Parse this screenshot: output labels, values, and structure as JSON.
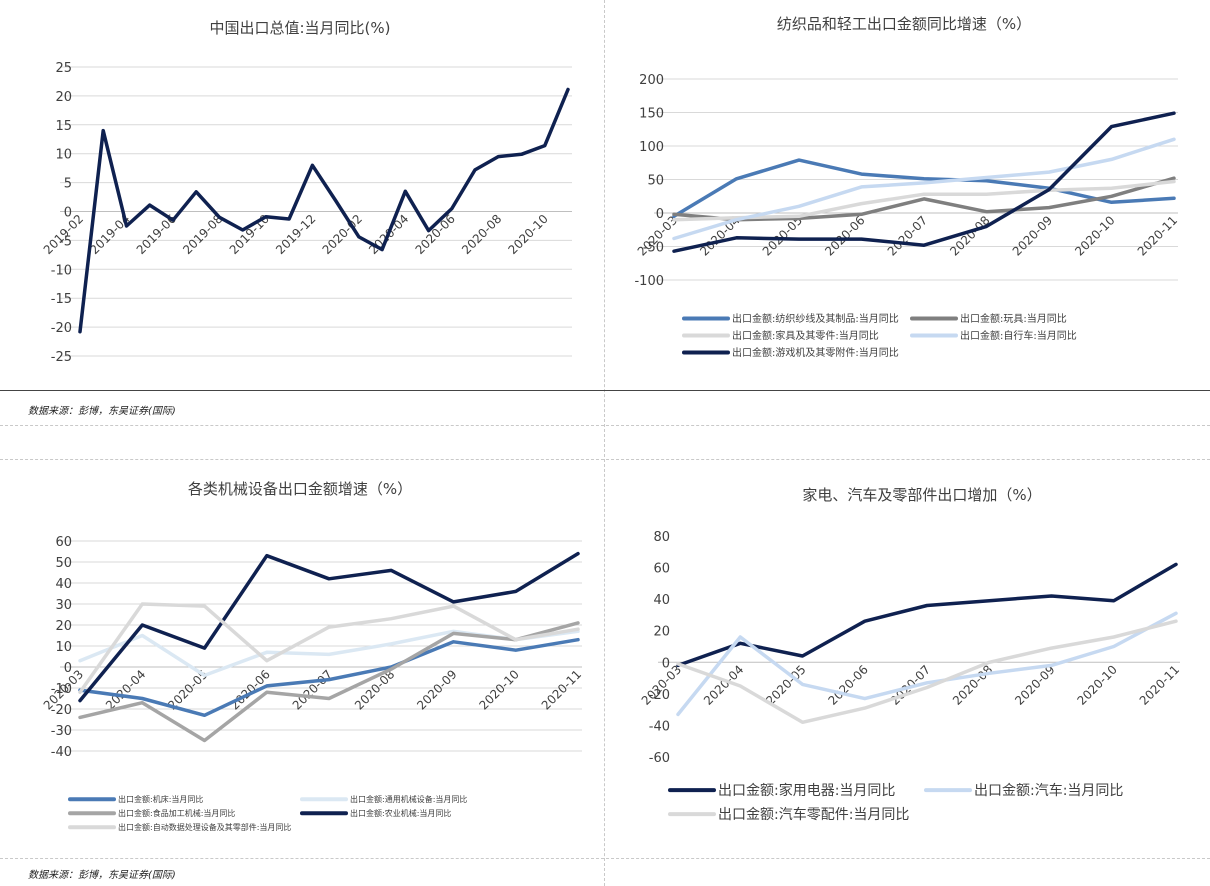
{
  "source_label": "数据来源：彭博，东吴证券(国际)",
  "colors": {
    "navy": "#0f2150",
    "steel": "#4a7ab5",
    "gray": "#7f7f7f",
    "lightgray": "#d9d9d9",
    "lightblue": "#c6d9f1",
    "paleblue": "#dbe8f3",
    "midgray": "#a5a5a5"
  },
  "chart_data": [
    {
      "id": "chart1",
      "type": "line",
      "title": "中国出口总值:当月同比(%)",
      "ylim": [
        -25,
        25
      ],
      "yticks": [
        25,
        20,
        15,
        10,
        5,
        0,
        -5,
        -10,
        -15,
        -20,
        -25
      ],
      "x": [
        "2019-02",
        "2019-03",
        "2019-04",
        "2019-05",
        "2019-06",
        "2019-07",
        "2019-08",
        "2019-09",
        "2019-10",
        "2019-11",
        "2019-12",
        "2020-01",
        "2020-02",
        "2020-03",
        "2020-04",
        "2020-05",
        "2020-06",
        "2020-07",
        "2020-08",
        "2020-09",
        "2020-10",
        "2020-11"
      ],
      "xticklabels": [
        "2019-02",
        "2019-04",
        "2019-06",
        "2019-08",
        "2019-10",
        "2019-12",
        "2020-02",
        "2020-04",
        "2020-06",
        "2020-08",
        "2020-10"
      ],
      "series": [
        {
          "name": "中国出口总值:当月同比",
          "color": "#0f2150",
          "values": [
            -20.8,
            14.0,
            -2.5,
            1.1,
            -1.5,
            3.4,
            -1.0,
            -3.2,
            -0.9,
            -1.3,
            8.0,
            1.9,
            -4.4,
            -6.6,
            3.5,
            -3.3,
            0.5,
            7.2,
            9.5,
            9.9,
            11.4,
            21.1
          ]
        }
      ]
    },
    {
      "id": "chart2",
      "type": "line",
      "title": "纺织品和轻工出口金额同比增速（%）",
      "ylim": [
        -100,
        200
      ],
      "yticks": [
        200,
        150,
        100,
        50,
        0,
        -50,
        -100
      ],
      "x": [
        "2020-03",
        "2020-04",
        "2020-05",
        "2020-06",
        "2020-07",
        "2020-08",
        "2020-09",
        "2020-10",
        "2020-11"
      ],
      "series": [
        {
          "name": "出口金额:纺织纱线及其制品:当月同比",
          "color": "#4a7ab5",
          "values": [
            -5,
            51,
            79,
            58,
            51,
            48,
            37,
            16,
            22
          ]
        },
        {
          "name": "出口金额:玩具:当月同比",
          "color": "#7f7f7f",
          "values": [
            -2,
            -10,
            -8,
            -2,
            21,
            2,
            8,
            25,
            52
          ]
        },
        {
          "name": "出口金额:家具及其零件:当月同比",
          "color": "#d9d9d9",
          "values": [
            -10,
            -7,
            -5,
            14,
            28,
            28,
            34,
            37,
            47
          ]
        },
        {
          "name": "出口金额:自行车:当月同比",
          "color": "#c6d9f1",
          "values": [
            -38,
            -10,
            10,
            39,
            45,
            53,
            61,
            80,
            110
          ]
        },
        {
          "name": "出口金额:游戏机及其零附件:当月同比",
          "color": "#0f2150",
          "values": [
            -57,
            -37,
            -39,
            -39,
            -48,
            -20,
            35,
            129,
            149
          ]
        }
      ]
    },
    {
      "id": "chart3",
      "type": "line",
      "title": "各类机械设备出口金额增速（%）",
      "ylim": [
        -40,
        60
      ],
      "yticks": [
        60,
        50,
        40,
        30,
        20,
        10,
        0,
        -10,
        -20,
        -30,
        -40
      ],
      "x": [
        "2020-03",
        "2020-04",
        "2020-05",
        "2020-06",
        "2020-07",
        "2020-08",
        "2020-09",
        "2020-10",
        "2020-11"
      ],
      "series": [
        {
          "name": "出口金额:机床:当月同比",
          "color": "#4a7ab5",
          "values": [
            -11,
            -15,
            -23,
            -9,
            -6,
            0,
            12,
            8,
            13
          ]
        },
        {
          "name": "出口金额:通用机械设备:当月同比",
          "color": "#dbe8f3",
          "values": [
            3,
            15,
            -4,
            7,
            6,
            11,
            17,
            13,
            17
          ]
        },
        {
          "name": "出口金额:食品加工机械:当月同比",
          "color": "#a5a5a5",
          "values": [
            -24,
            -17,
            -35,
            -12,
            -15,
            -1,
            16,
            13,
            21
          ]
        },
        {
          "name": "出口金额:农业机械:当月同比",
          "color": "#0f2150",
          "values": [
            -16,
            20,
            9,
            53,
            42,
            46,
            31,
            36,
            54
          ]
        },
        {
          "name": "出口金额:自动数据处理设备及其零部件:当月同比",
          "color": "#d9d9d9",
          "values": [
            -12,
            30,
            29,
            3,
            19,
            23,
            29,
            13,
            18
          ]
        }
      ]
    },
    {
      "id": "chart4",
      "type": "line",
      "title": "家电、汽车及零部件出口增加（%）",
      "ylim": [
        -60,
        80
      ],
      "yticks": [
        80,
        60,
        40,
        20,
        0,
        -20,
        -40,
        -60
      ],
      "x": [
        "2020-03",
        "2020-04",
        "2020-05",
        "2020-06",
        "2020-07",
        "2020-08",
        "2020-09",
        "2020-10",
        "2020-11"
      ],
      "series": [
        {
          "name": "出口金额:家用电器:当月同比",
          "color": "#0f2150",
          "values": [
            -2,
            12,
            4,
            26,
            36,
            39,
            42,
            39,
            62
          ]
        },
        {
          "name": "出口金额:汽车:当月同比",
          "color": "#c6d9f1",
          "values": [
            -33,
            16,
            -14,
            -23,
            -13,
            -7,
            -2,
            10,
            31
          ]
        },
        {
          "name": "出口金额:汽车零配件:当月同比",
          "color": "#d9d9d9",
          "values": [
            -1,
            -15,
            -38,
            -29,
            -16,
            0,
            9,
            16,
            26
          ]
        }
      ]
    }
  ]
}
